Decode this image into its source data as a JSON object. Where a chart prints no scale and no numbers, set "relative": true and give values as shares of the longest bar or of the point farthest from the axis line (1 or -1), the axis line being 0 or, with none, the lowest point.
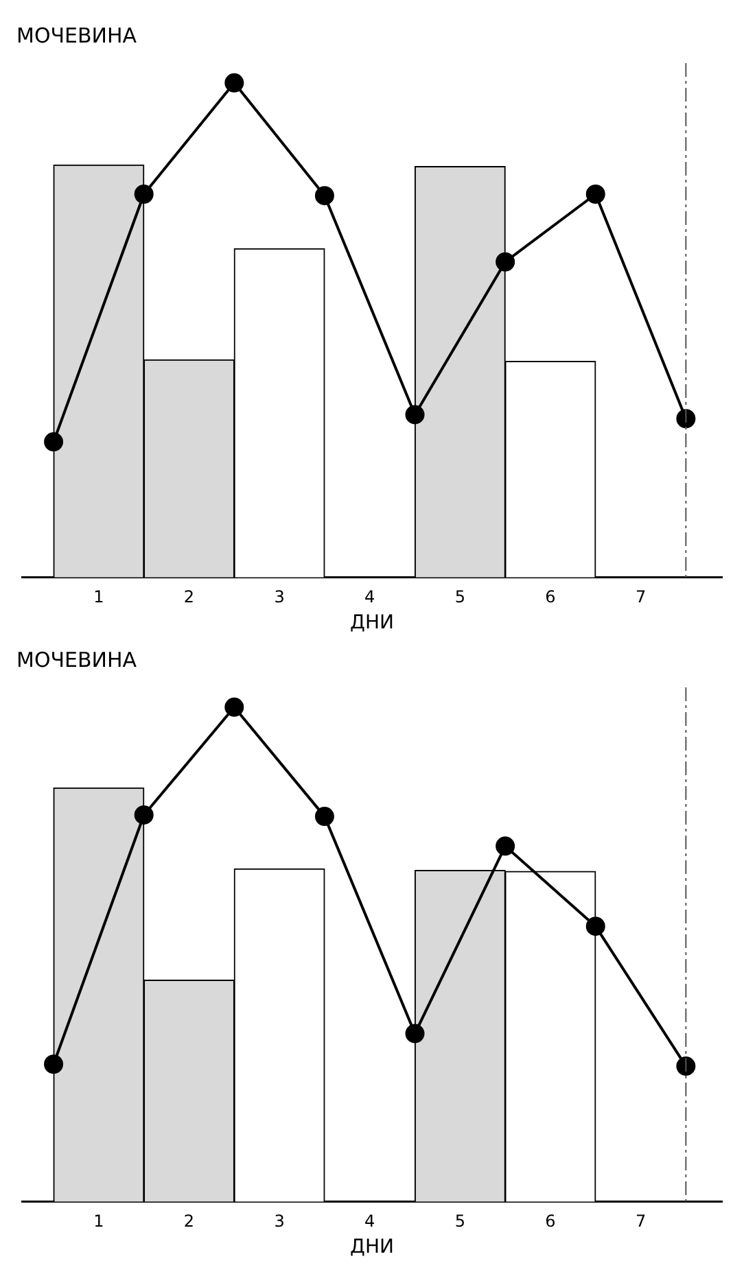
{
  "chart_data": [
    {
      "type": "bar",
      "title": "МОЧЕВИНА",
      "xlabel": "ДНИ",
      "relative": true,
      "xlim": [
        0.15,
        7.9
      ],
      "xticks": [
        1,
        2,
        3,
        4,
        5,
        6,
        7
      ],
      "series": [
        {
          "x": [
            1,
            2,
            3,
            5,
            6
          ],
          "values": [
            0.834,
            0.44,
            0.665,
            0.831,
            0.437
          ],
          "colors": [
            "#d9d9d9",
            "#d9d9d9",
            "#ffffff",
            "#d9d9d9",
            "#ffffff"
          ]
        },
        {
          "type": "line",
          "x": [
            0.5,
            1.5,
            2.5,
            3.5,
            4.5,
            5.5,
            6.5,
            7.5
          ],
          "values": [
            0.274,
            0.775,
            1,
            0.772,
            0.329,
            0.638,
            0.775,
            0.321
          ],
          "color": "#000000",
          "marker": "circle"
        }
      ],
      "ref_lines": [
        {
          "axis": "x",
          "value": 7.5,
          "color": "#555555",
          "line_style": "dashed"
        }
      ]
    },
    {
      "type": "bar",
      "title": "МОЧЕВИНА",
      "xlabel": "ДНИ",
      "relative": true,
      "xlim": [
        0.15,
        7.9
      ],
      "xticks": [
        1,
        2,
        3,
        4,
        5,
        6,
        7
      ],
      "series": [
        {
          "x": [
            1,
            2,
            3,
            5,
            6
          ],
          "values": [
            0.837,
            0.448,
            0.673,
            0.67,
            0.668
          ],
          "colors": [
            "#d9d9d9",
            "#d9d9d9",
            "#ffffff",
            "#d9d9d9",
            "#ffffff"
          ]
        },
        {
          "type": "line",
          "x": [
            0.5,
            1.5,
            2.5,
            3.5,
            4.5,
            5.5,
            6.5,
            7.5
          ],
          "values": [
            0.278,
            0.782,
            1,
            0.779,
            0.34,
            0.719,
            0.557,
            0.274
          ],
          "color": "#000000",
          "marker": "circle"
        }
      ],
      "ref_lines": [
        {
          "axis": "x",
          "value": 7.5,
          "color": "#555555",
          "line_style": "dashed"
        }
      ]
    }
  ]
}
